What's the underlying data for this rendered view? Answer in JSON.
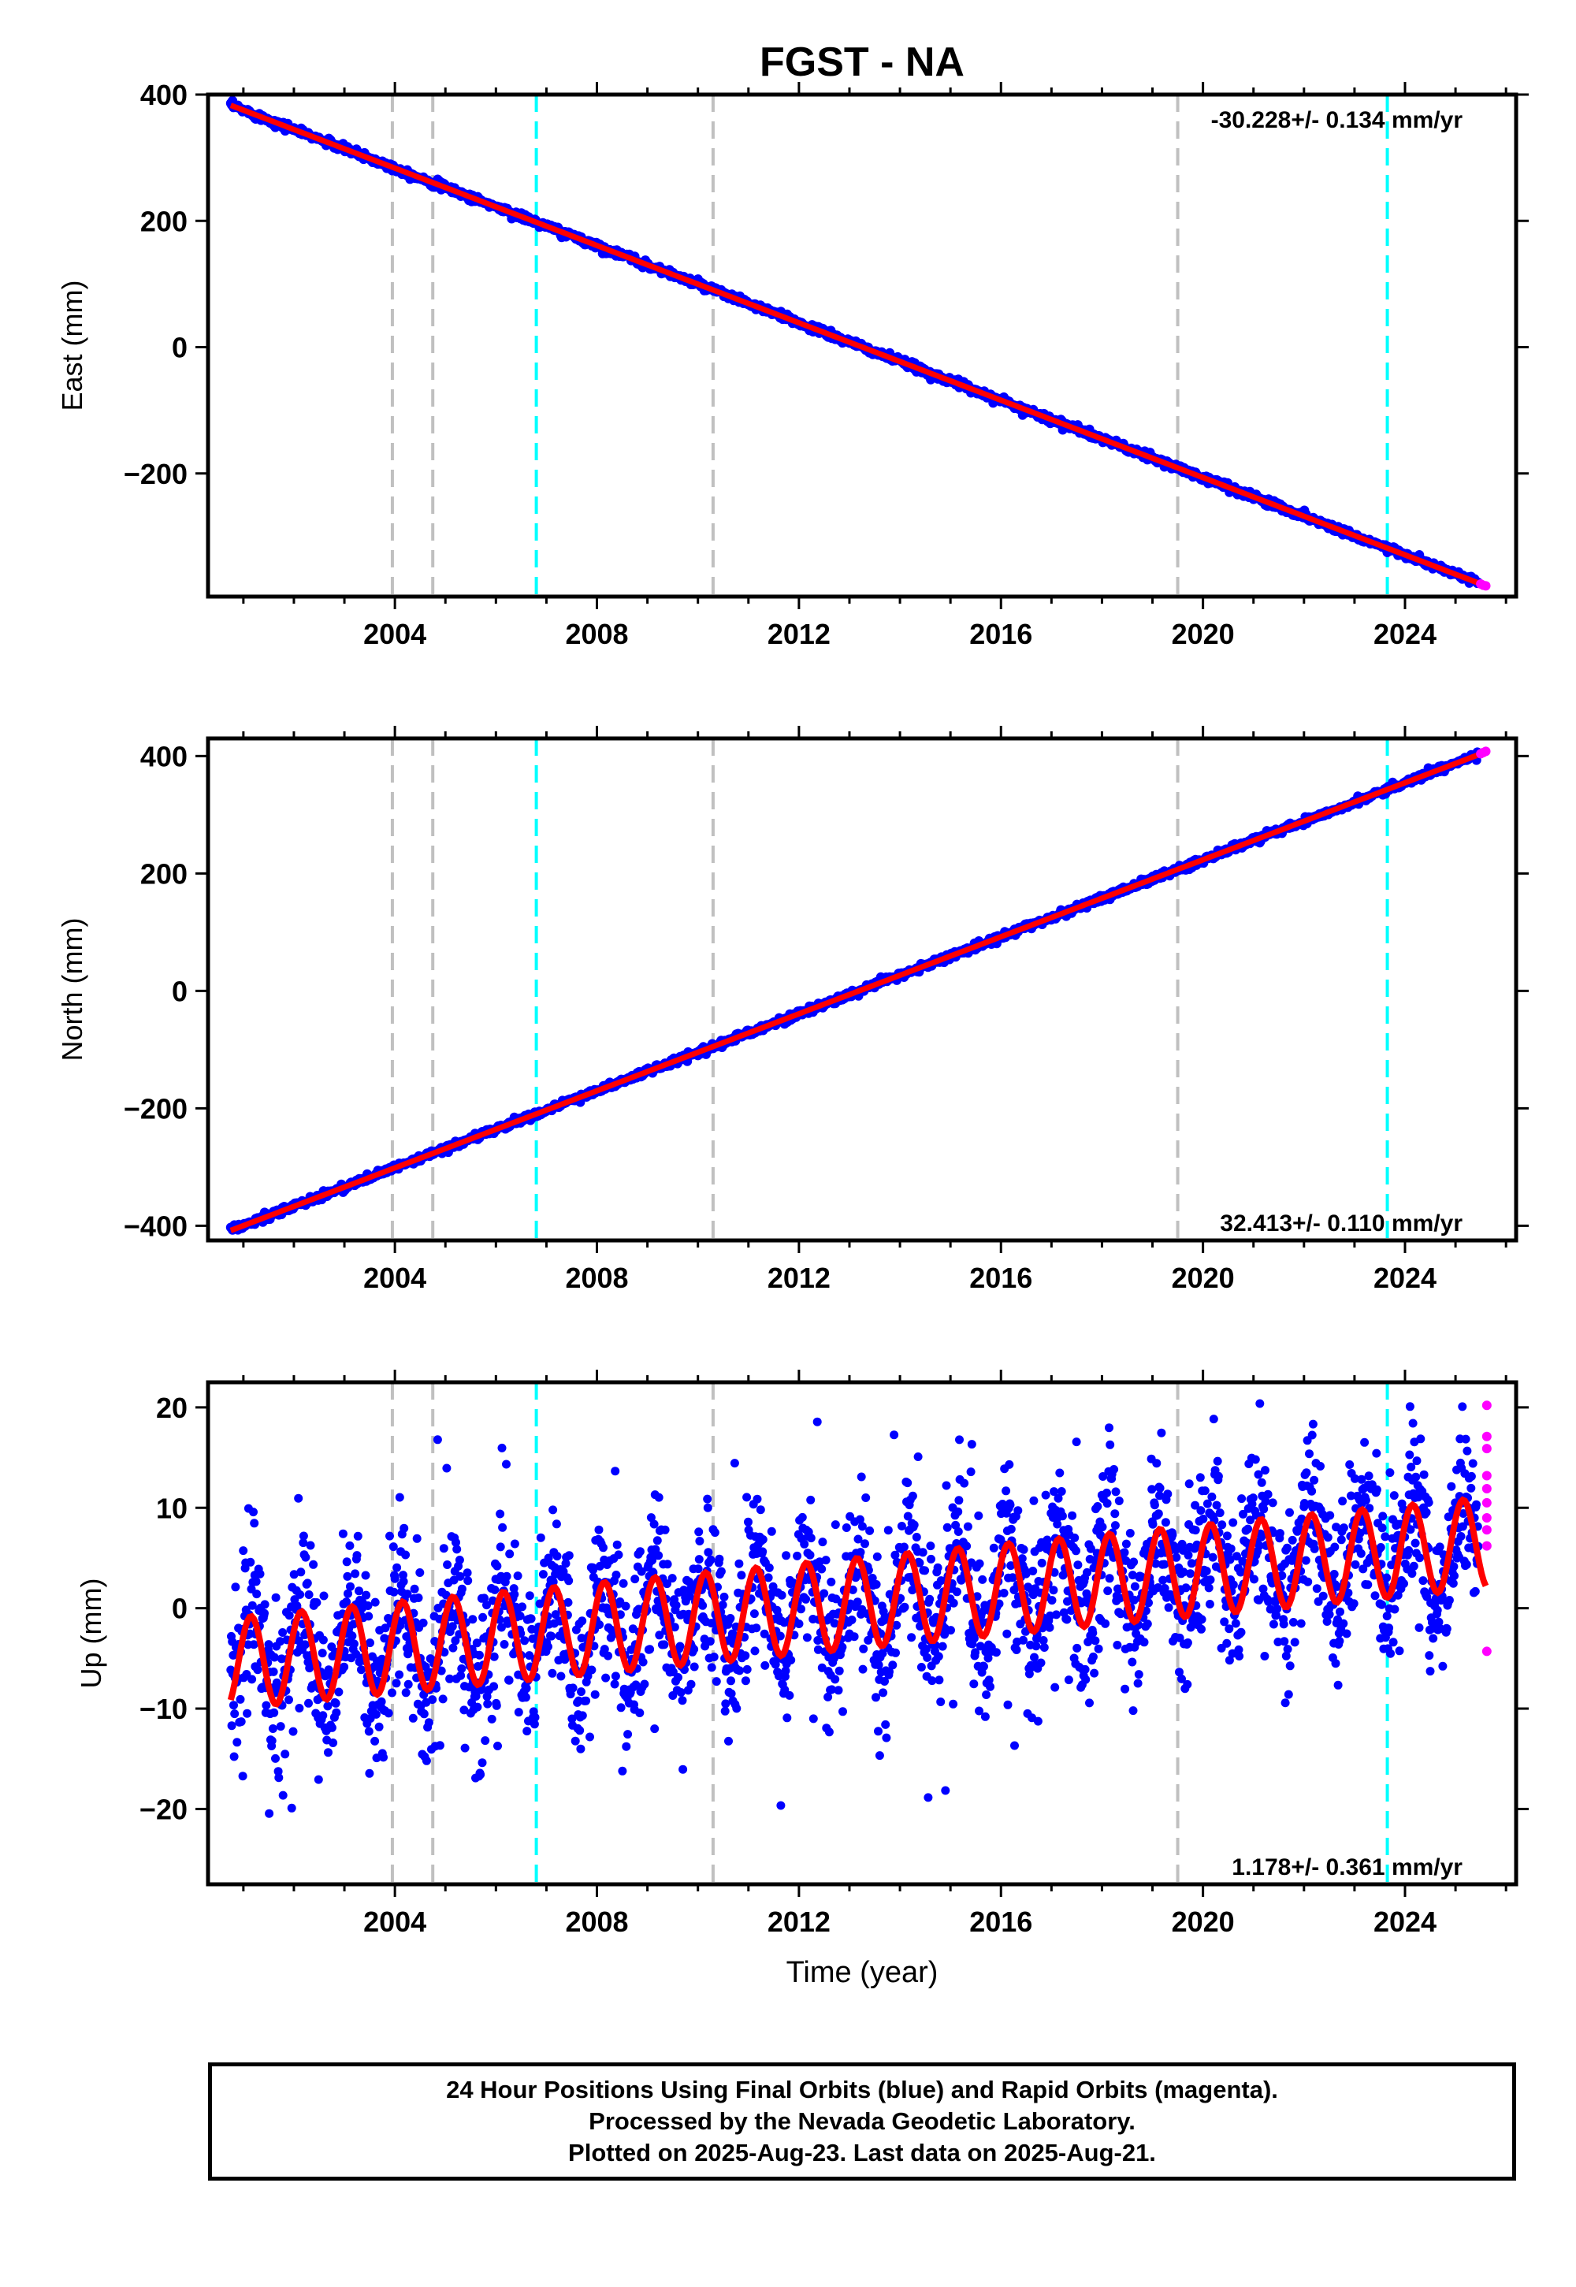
{
  "title": "FGST - NA",
  "xlabel": "Time (year)",
  "footer": {
    "line1": "24 Hour Positions Using Final Orbits (blue) and Rapid Orbits (magenta).",
    "line2": "Processed by the Nevada Geodetic Laboratory.",
    "line3": "Plotted on 2025-Aug-23. Last data on 2025-Aug-21."
  },
  "colors": {
    "final_orbits": "#0000ff",
    "rapid_orbits": "#ff00ff",
    "model_fit": "#ff0000",
    "equipment_change_line": "#c0c0c0",
    "earthquake_line": "#00ffff"
  },
  "chart_data": [
    {
      "type": "scatter",
      "component": "east",
      "ylabel": "East (mm)",
      "rate_label": "-30.228+/- 0.134 mm/yr",
      "rate_label_position": "top-right",
      "xlim": [
        2000.3,
        2026.2
      ],
      "ylim": [
        -395,
        400
      ],
      "xticks": [
        2004,
        2008,
        2012,
        2016,
        2020,
        2024
      ],
      "yticks": [
        400,
        200,
        0,
        -200
      ],
      "ytick_labels": [
        "400",
        "200",
        "0",
        "−200"
      ],
      "start": [
        2000.75,
        383
      ],
      "end": [
        2025.6,
        -378
      ],
      "scatter_noise_mm": 3,
      "seasonal_amplitude_mm": 0,
      "grey_dashed_lines": [
        2003.95,
        2004.75,
        2010.3,
        2019.5
      ],
      "cyan_dashed_lines": [
        2006.8,
        2023.65
      ],
      "rapid_points": [
        [
          2025.5,
          -375
        ],
        [
          2025.55,
          -377
        ],
        [
          2025.6,
          -378
        ]
      ]
    },
    {
      "type": "scatter",
      "component": "north",
      "ylabel": "North (mm)",
      "rate_label": "32.413+/- 0.110 mm/yr",
      "rate_label_position": "bottom-right",
      "xlim": [
        2000.3,
        2026.2
      ],
      "ylim": [
        -425,
        430
      ],
      "xticks": [
        2004,
        2008,
        2012,
        2016,
        2020,
        2024
      ],
      "yticks": [
        400,
        200,
        0,
        -200,
        -400
      ],
      "ytick_labels": [
        "400",
        "200",
        "0",
        "−200",
        "−400"
      ],
      "start": [
        2000.75,
        -408
      ],
      "end": [
        2025.6,
        407
      ],
      "scatter_noise_mm": 3,
      "seasonal_amplitude_mm": 0,
      "grey_dashed_lines": [
        2003.95,
        2004.75,
        2010.3,
        2019.5
      ],
      "cyan_dashed_lines": [
        2006.8,
        2023.65
      ],
      "rapid_points": [
        [
          2025.5,
          404
        ],
        [
          2025.55,
          406
        ],
        [
          2025.6,
          408
        ]
      ]
    },
    {
      "type": "scatter",
      "component": "up",
      "ylabel": "Up (mm)",
      "rate_label": "1.178+/- 0.361 mm/yr",
      "rate_label_position": "bottom-right",
      "xlim": [
        2000.3,
        2026.2
      ],
      "ylim": [
        -27.5,
        22.5
      ],
      "xticks": [
        2004,
        2008,
        2012,
        2016,
        2020,
        2024
      ],
      "yticks": [
        20,
        10,
        0,
        -10,
        -20
      ],
      "ytick_labels": [
        "20",
        "10",
        "0",
        "−10",
        "−20"
      ],
      "start": [
        2000.75,
        -5.5
      ],
      "end": [
        2025.6,
        6.5
      ],
      "scatter_noise_mm": 4,
      "seasonal_amplitude_mm": 4.5,
      "grey_dashed_lines": [
        2003.95,
        2004.75,
        2010.3,
        2019.5
      ],
      "cyan_dashed_lines": [
        2006.8,
        2023.65
      ],
      "rapid_points": [
        [
          2025.62,
          20.2
        ],
        [
          2025.62,
          17.1
        ],
        [
          2025.62,
          15.9
        ],
        [
          2025.62,
          13.2
        ],
        [
          2025.62,
          11.9
        ],
        [
          2025.62,
          10.5
        ],
        [
          2025.62,
          9.0
        ],
        [
          2025.62,
          7.8
        ],
        [
          2025.62,
          6.2
        ],
        [
          2025.62,
          -4.3
        ]
      ]
    }
  ]
}
